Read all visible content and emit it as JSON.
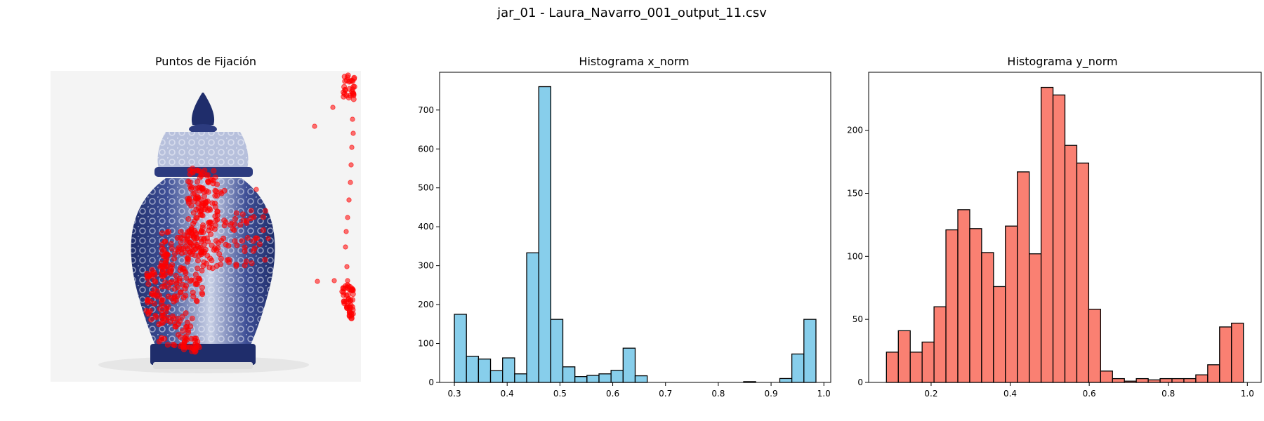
{
  "figure": {
    "title": "jar_01 - Laura_Navarro_001_output_11.csv"
  },
  "chart_data": [
    {
      "type": "scatter",
      "title": "Puntos de Fijación",
      "colors": {
        "points": "#ff0000"
      },
      "axes_visible": false,
      "background_image": "porcelain-ginger-jar-photo"
    },
    {
      "type": "bar",
      "title": "Histograma x_norm",
      "xlabel": "",
      "ylabel": "",
      "bin_range": [
        0.3,
        0.985
      ],
      "values": [
        175,
        67,
        60,
        30,
        63,
        22,
        333,
        760,
        162,
        40,
        15,
        18,
        22,
        31,
        88,
        17,
        0,
        0,
        0,
        0,
        0,
        0,
        0,
        0,
        2,
        0,
        0,
        10,
        73,
        162
      ],
      "xlim": [
        0.272,
        1.013
      ],
      "ylim": [
        0,
        797
      ],
      "xticks": [
        0.3,
        0.4,
        0.5,
        0.6,
        0.7,
        0.8,
        0.9,
        1.0
      ],
      "xtick_labels": [
        "0.3",
        "0.4",
        "0.5",
        "0.6",
        "0.7",
        "0.8",
        "0.9",
        "1.0"
      ],
      "yticks": [
        0,
        100,
        200,
        300,
        400,
        500,
        600,
        700
      ],
      "grid": false,
      "colors": {
        "fill": "#87ceeb",
        "edge": "#000000"
      }
    },
    {
      "type": "bar",
      "title": "Histograma y_norm",
      "xlabel": "",
      "ylabel": "",
      "bin_range": [
        0.087,
        0.99
      ],
      "values": [
        24,
        41,
        24,
        32,
        60,
        121,
        137,
        122,
        103,
        76,
        124,
        167,
        102,
        234,
        228,
        188,
        174,
        58,
        9,
        3,
        1,
        3,
        2,
        3,
        3,
        3,
        6,
        14,
        44,
        47
      ],
      "xlim": [
        0.042,
        1.035
      ],
      "ylim": [
        0,
        246
      ],
      "xticks": [
        0.2,
        0.4,
        0.6,
        0.8,
        1.0
      ],
      "xtick_labels": [
        "0.2",
        "0.4",
        "0.6",
        "0.8",
        "1.0"
      ],
      "yticks": [
        0,
        50,
        100,
        150,
        200
      ],
      "grid": false,
      "colors": {
        "fill": "#fa8072",
        "edge": "#000000"
      }
    }
  ]
}
